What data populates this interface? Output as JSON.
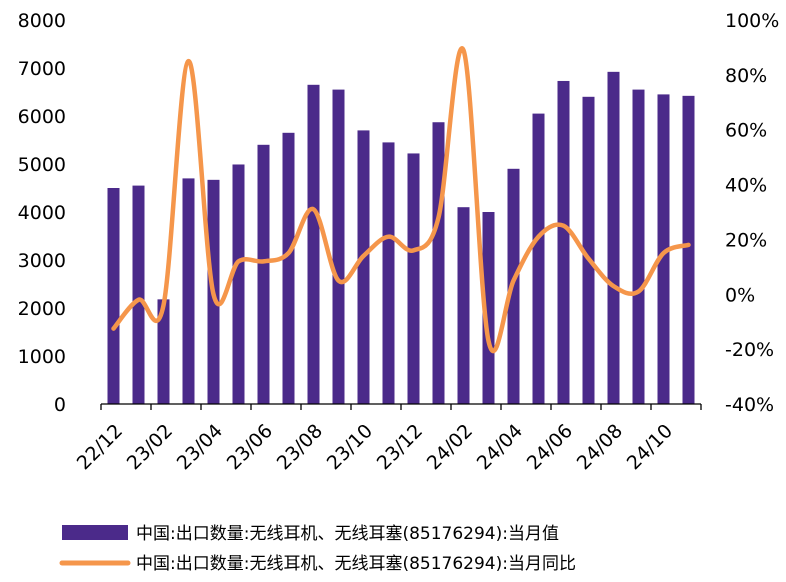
{
  "chart_data": {
    "type": "bar",
    "categories": [
      "22/12",
      "23/01",
      "23/02",
      "23/03",
      "23/04",
      "23/05",
      "23/06",
      "23/07",
      "23/08",
      "23/09",
      "23/10",
      "23/11",
      "23/12",
      "24/01",
      "24/02",
      "24/03",
      "24/04",
      "24/05",
      "24/06",
      "24/07",
      "24/08",
      "24/09",
      "24/10",
      "24/11"
    ],
    "x_tick_labels": [
      "22/12",
      "23/02",
      "23/04",
      "23/06",
      "23/08",
      "23/10",
      "23/12",
      "24/02",
      "24/04",
      "24/06",
      "24/08",
      "24/10"
    ],
    "y_left": {
      "ylim": [
        0,
        8000
      ],
      "ticks": [
        "0",
        "1000",
        "2000",
        "3000",
        "4000",
        "5000",
        "6000",
        "7000",
        "8000"
      ]
    },
    "y_right": {
      "ylim": [
        -40,
        100
      ],
      "ticks": [
        "-40%",
        "-20%",
        "0%",
        "20%",
        "40%",
        "60%",
        "80%",
        "100%"
      ]
    },
    "series": [
      {
        "name": "中国:出口数量:无线耳机、无线耳塞(85176294):当月值",
        "type": "bar",
        "axis": "left",
        "color": "#4b2a8a",
        "values": [
          4500,
          4550,
          2180,
          4700,
          4670,
          4990,
          5400,
          5650,
          6650,
          6550,
          5700,
          5450,
          5220,
          5870,
          4100,
          4000,
          4900,
          6050,
          6730,
          6400,
          6920,
          6550,
          6450,
          6420
        ]
      },
      {
        "name": "中国:出口数量:无线耳机、无线耳塞(85176294):当月同比",
        "type": "line",
        "axis": "right",
        "color": "#f5964b",
        "values": [
          -12.5,
          -2,
          -4,
          85,
          0,
          12,
          12,
          15,
          31,
          5,
          14,
          21,
          16,
          28,
          89,
          -17,
          5,
          21,
          25,
          13,
          3,
          1,
          15,
          18
        ]
      }
    ],
    "legend_position": "bottom"
  }
}
